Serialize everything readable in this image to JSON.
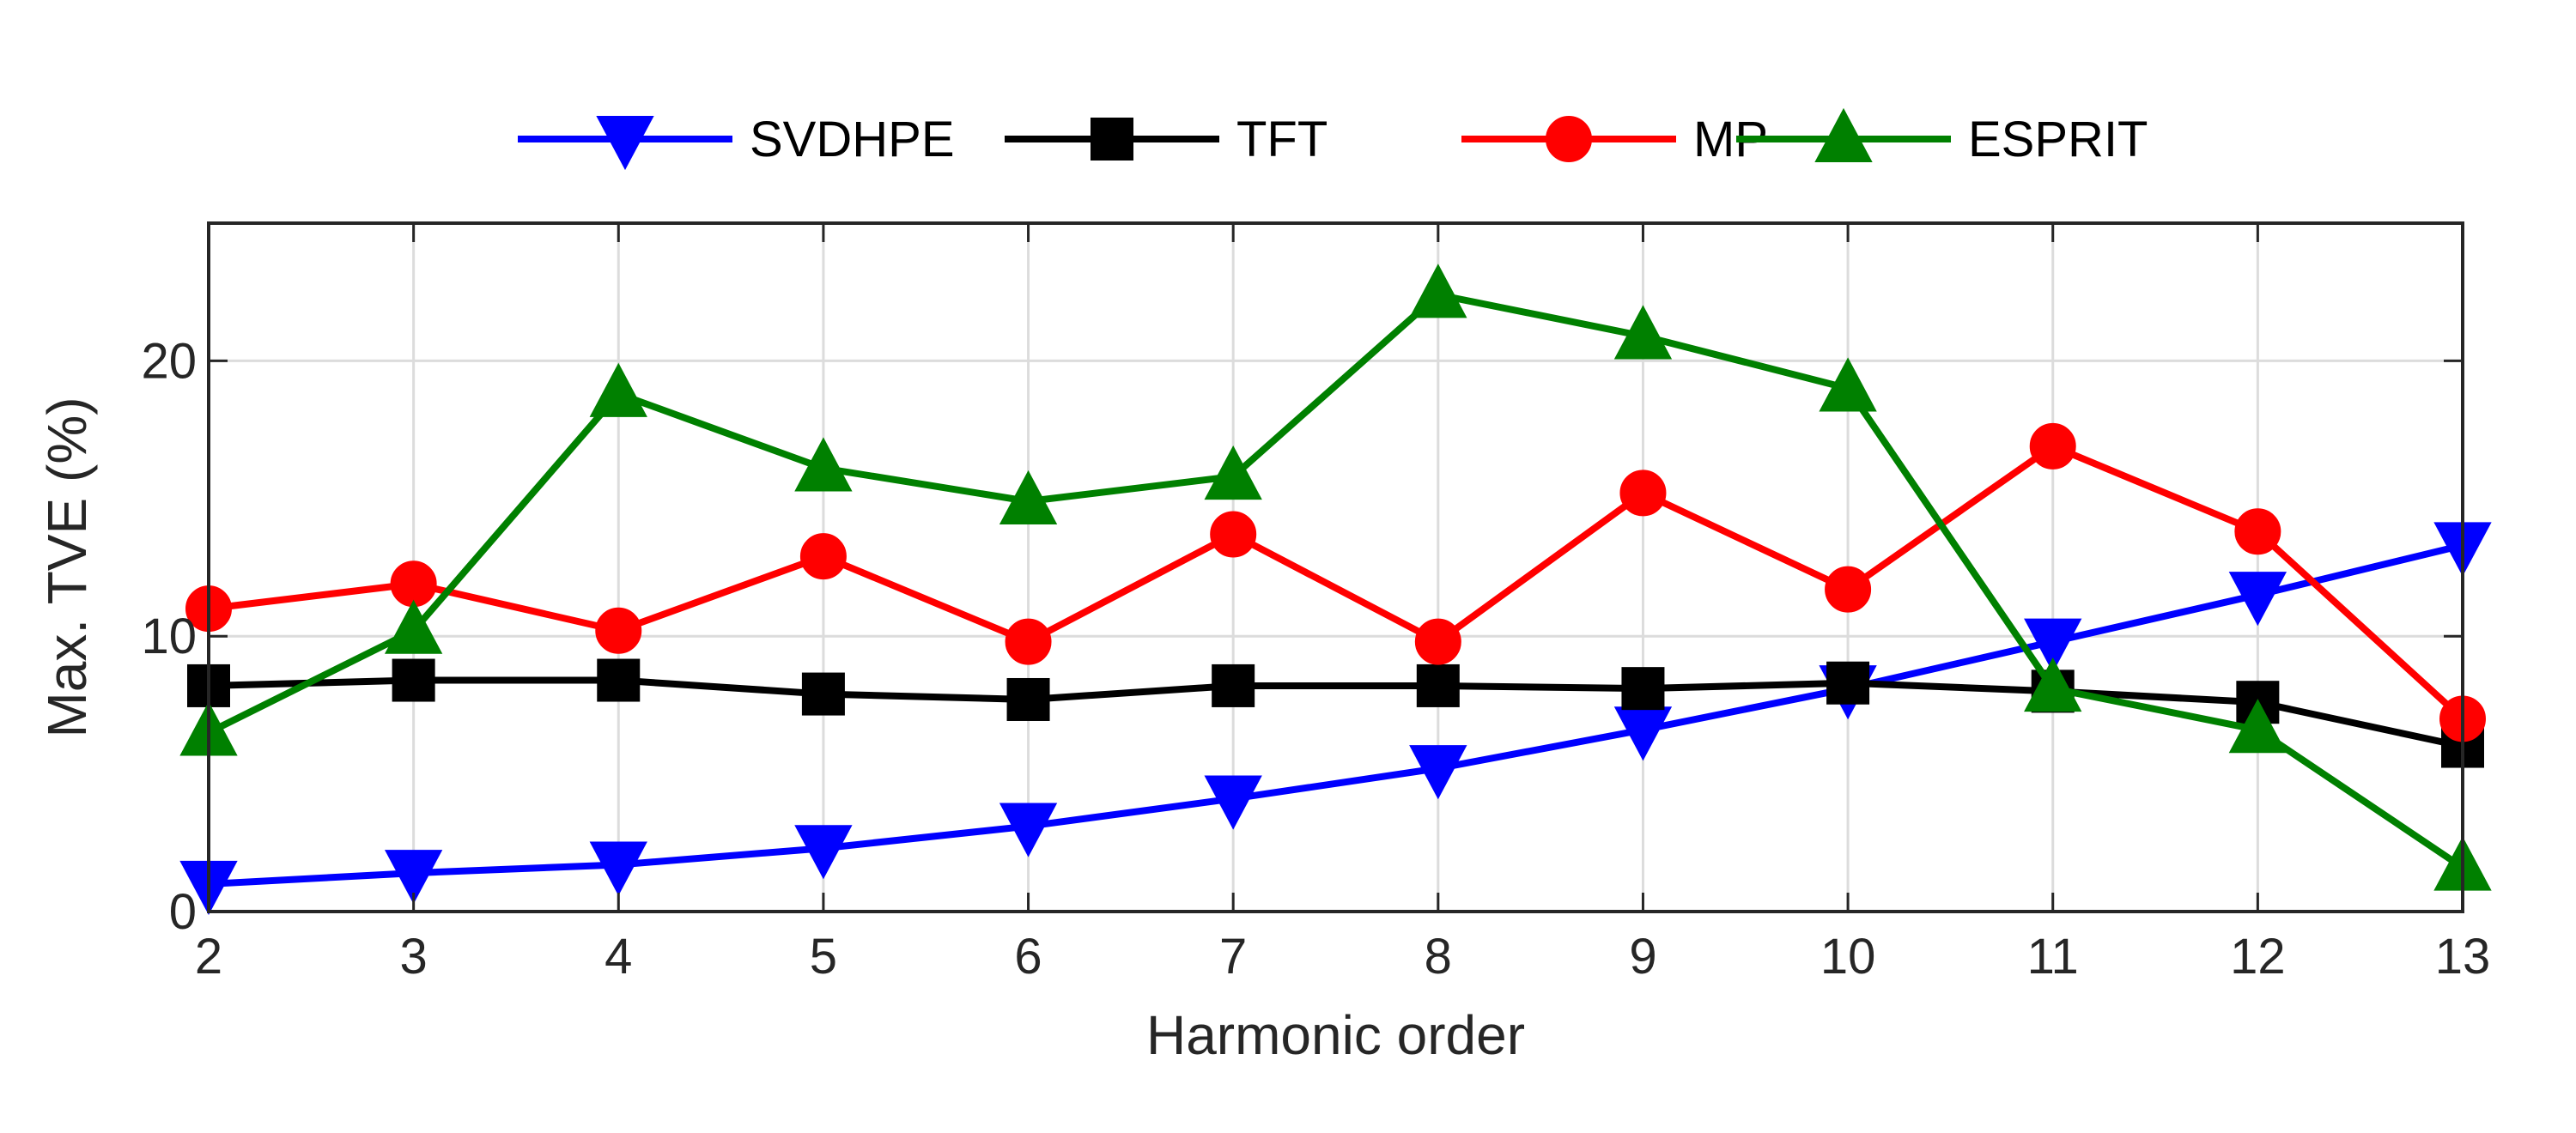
{
  "chart_data": {
    "type": "line",
    "x": [
      2,
      3,
      4,
      5,
      6,
      7,
      8,
      9,
      10,
      11,
      12,
      13
    ],
    "xlabel": "Harmonic order",
    "ylabel": "Max. TVE (%)",
    "xlim": [
      2,
      13
    ],
    "ylim": [
      0,
      25
    ],
    "xticks": [
      2,
      3,
      4,
      5,
      6,
      7,
      8,
      9,
      10,
      11,
      12,
      13
    ],
    "yticks": [
      0,
      10,
      20
    ],
    "grid": true,
    "legend_position": "top, outside, horizontal",
    "series": [
      {
        "name": "SVDHPE",
        "color": "#0000ff",
        "marker": "triangle-down",
        "values": [
          1.0,
          1.4,
          1.7,
          2.3,
          3.1,
          4.1,
          5.2,
          6.6,
          8.1,
          9.8,
          11.5,
          13.3
        ]
      },
      {
        "name": "TFT",
        "color": "#000000",
        "marker": "square",
        "values": [
          8.2,
          8.4,
          8.4,
          7.9,
          7.7,
          8.2,
          8.2,
          8.1,
          8.3,
          8.0,
          7.6,
          6.0
        ]
      },
      {
        "name": "MP",
        "color": "#ff0000",
        "marker": "circle",
        "values": [
          11.0,
          11.9,
          10.2,
          12.9,
          9.8,
          13.7,
          9.8,
          15.2,
          11.7,
          16.9,
          13.8,
          7.0
        ]
      },
      {
        "name": "ESPRIT",
        "color": "#008000",
        "marker": "triangle-up",
        "values": [
          6.5,
          10.2,
          18.8,
          16.1,
          14.9,
          15.8,
          22.4,
          20.9,
          19.0,
          8.1,
          6.6,
          1.6
        ]
      }
    ]
  }
}
